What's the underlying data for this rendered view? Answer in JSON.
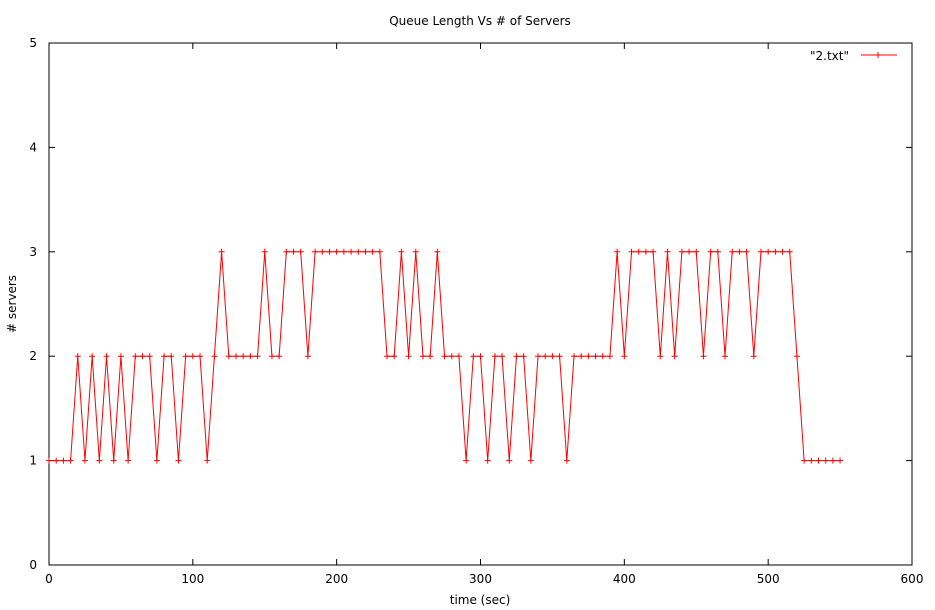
{
  "chart_data": {
    "type": "line",
    "title": "Queue Length Vs # of Servers",
    "xlabel": "time (sec)",
    "ylabel": "# servers",
    "xlim": [
      0,
      600
    ],
    "ylim": [
      0,
      5
    ],
    "xticks": [
      0,
      100,
      200,
      300,
      400,
      500,
      600
    ],
    "yticks": [
      0,
      1,
      2,
      3,
      4,
      5
    ],
    "grid": false,
    "legend_position": "top-right",
    "series": [
      {
        "name": "\"2.txt\"",
        "color": "#ff0000",
        "marker": "plus",
        "x": [
          0,
          5,
          10,
          15,
          20,
          25,
          30,
          35,
          40,
          45,
          50,
          55,
          60,
          65,
          70,
          75,
          80,
          85,
          90,
          95,
          100,
          105,
          110,
          115,
          120,
          125,
          130,
          135,
          140,
          145,
          150,
          155,
          160,
          165,
          170,
          175,
          180,
          185,
          190,
          195,
          200,
          205,
          210,
          215,
          220,
          225,
          230,
          235,
          240,
          245,
          250,
          255,
          260,
          265,
          270,
          275,
          280,
          285,
          290,
          295,
          300,
          305,
          310,
          315,
          320,
          325,
          330,
          335,
          340,
          345,
          350,
          355,
          360,
          365,
          370,
          375,
          380,
          385,
          390,
          395,
          400,
          405,
          410,
          415,
          420,
          425,
          430,
          435,
          440,
          445,
          450,
          455,
          460,
          465,
          470,
          475,
          480,
          485,
          490,
          495,
          500,
          505,
          510,
          515,
          520,
          525,
          530,
          535,
          540,
          545,
          550
        ],
        "y": [
          1,
          1,
          1,
          1,
          2,
          1,
          2,
          1,
          2,
          1,
          2,
          1,
          2,
          2,
          2,
          1,
          2,
          2,
          1,
          2,
          2,
          2,
          1,
          2,
          3,
          2,
          2,
          2,
          2,
          2,
          3,
          2,
          2,
          3,
          3,
          3,
          2,
          3,
          3,
          3,
          3,
          3,
          3,
          3,
          3,
          3,
          3,
          2,
          2,
          3,
          2,
          3,
          2,
          2,
          3,
          2,
          2,
          2,
          1,
          2,
          2,
          1,
          2,
          2,
          1,
          2,
          2,
          1,
          2,
          2,
          2,
          2,
          1,
          2,
          2,
          2,
          2,
          2,
          2,
          3,
          2,
          3,
          3,
          3,
          3,
          2,
          3,
          2,
          3,
          3,
          3,
          2,
          3,
          3,
          2,
          3,
          3,
          3,
          2,
          3,
          3,
          3,
          3,
          3,
          2,
          1,
          1,
          1,
          1,
          1,
          1
        ]
      }
    ]
  }
}
